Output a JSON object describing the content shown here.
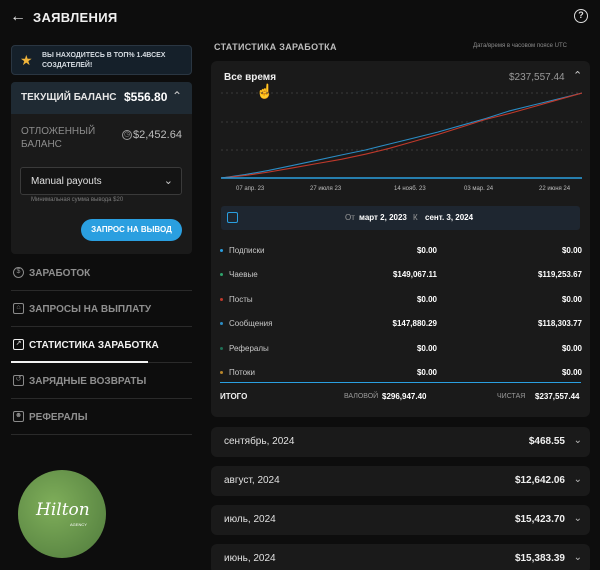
{
  "header": {
    "back_icon": "arrow-left-icon",
    "title": "ЗАЯВЛЕНИЯ",
    "help_icon": "question-circle-icon"
  },
  "promo": {
    "icon": "star-icon",
    "text": "ВЫ НАХОДИТЕСЬ В ТОП% 1.4ВСЕХ СОЗДАТЕЛЕЙ!"
  },
  "balance": {
    "current_label": "ТЕКУЩИЙ БАЛАНС",
    "current_value": "$556.80",
    "pending_label": "ОТЛОЖЕННЫЙ БАЛАНС",
    "pending_value": "$2,452.64",
    "payout_select": "Manual payouts",
    "min_payout": "Минимальная сумма вывода $20",
    "request_button": "ЗАПРОС НА ВЫВОД"
  },
  "nav": [
    {
      "label": "ЗАРАБОТОК",
      "icon": "dollar-circle-icon"
    },
    {
      "label": "ЗАПРОСЫ НА ВЫПЛАТУ",
      "icon": "bank-icon"
    },
    {
      "label": "СТАТИСТИКА ЗАРАБОТКА",
      "icon": "chart-line-icon",
      "active": true
    },
    {
      "label": "ЗАРЯДНЫЕ ВОЗВРАТЫ",
      "icon": "refund-icon"
    },
    {
      "label": "РЕФЕРАЛЫ",
      "icon": "referral-icon"
    }
  ],
  "logo": {
    "word": "Hilton",
    "sub": "AGENCY"
  },
  "stats": {
    "heading": "СТАТИСТИКА ЗАРАБОТКА",
    "timezone_note": "Дата/время в часовом поясе UTC",
    "period": "Все время",
    "period_total": "$237,557.44",
    "date_from_label": "От",
    "date_from": "март 2, 2023",
    "date_to_label": "К",
    "date_to": "сент. 3, 2024",
    "rows": [
      {
        "name": "Подписки",
        "gross": "$0.00",
        "net": "$0.00",
        "color": "#2a9fe0"
      },
      {
        "name": "Чаевые",
        "gross": "$149,067.11",
        "net": "$119,253.67",
        "color": "#2fa36b"
      },
      {
        "name": "Посты",
        "gross": "$0.00",
        "net": "$0.00",
        "color": "#c0392b"
      },
      {
        "name": "Сообщения",
        "gross": "$147,880.29",
        "net": "$118,303.77",
        "color": "#2b8cc4"
      },
      {
        "name": "Рефералы",
        "gross": "$0.00",
        "net": "$0.00",
        "color": "#1f6f55"
      },
      {
        "name": "Потоки",
        "gross": "$0.00",
        "net": "$0.00",
        "color": "#b8862a"
      }
    ],
    "total_label": "ИТОГО",
    "gross_label": "ВАЛОВОЙ",
    "gross_total": "$296,947.40",
    "net_label": "ЧИСТАЯ",
    "net_total": "$237,557.44"
  },
  "chart_data": {
    "type": "line",
    "x_ticks": [
      "07 апр. 23",
      "27 июля 23",
      "14 нояб. 23",
      "03 мар. 24",
      "22 июня 24"
    ],
    "series": [
      {
        "color": "#2b8cc4",
        "values": [
          0,
          4,
          9,
          15,
          21,
          27,
          33,
          40,
          47,
          54,
          62,
          70,
          79,
          86,
          93,
          100
        ]
      },
      {
        "color": "#c0392b",
        "values": [
          0,
          3,
          7,
          12,
          17,
          22,
          28,
          35,
          43,
          51,
          60,
          69,
          76,
          84,
          92,
          100
        ]
      },
      {
        "color": "#2a9fe0",
        "values": [
          0,
          0,
          0,
          0,
          0,
          0,
          0,
          0,
          0,
          0,
          0,
          0,
          0,
          0,
          0,
          0
        ]
      }
    ],
    "grid": true
  },
  "months": [
    {
      "label": "сентябрь, 2024",
      "value": "$468.55"
    },
    {
      "label": "август, 2024",
      "value": "$12,642.06"
    },
    {
      "label": "июль, 2024",
      "value": "$15,423.70"
    },
    {
      "label": "июнь, 2024",
      "value": "$15,383.39"
    }
  ]
}
